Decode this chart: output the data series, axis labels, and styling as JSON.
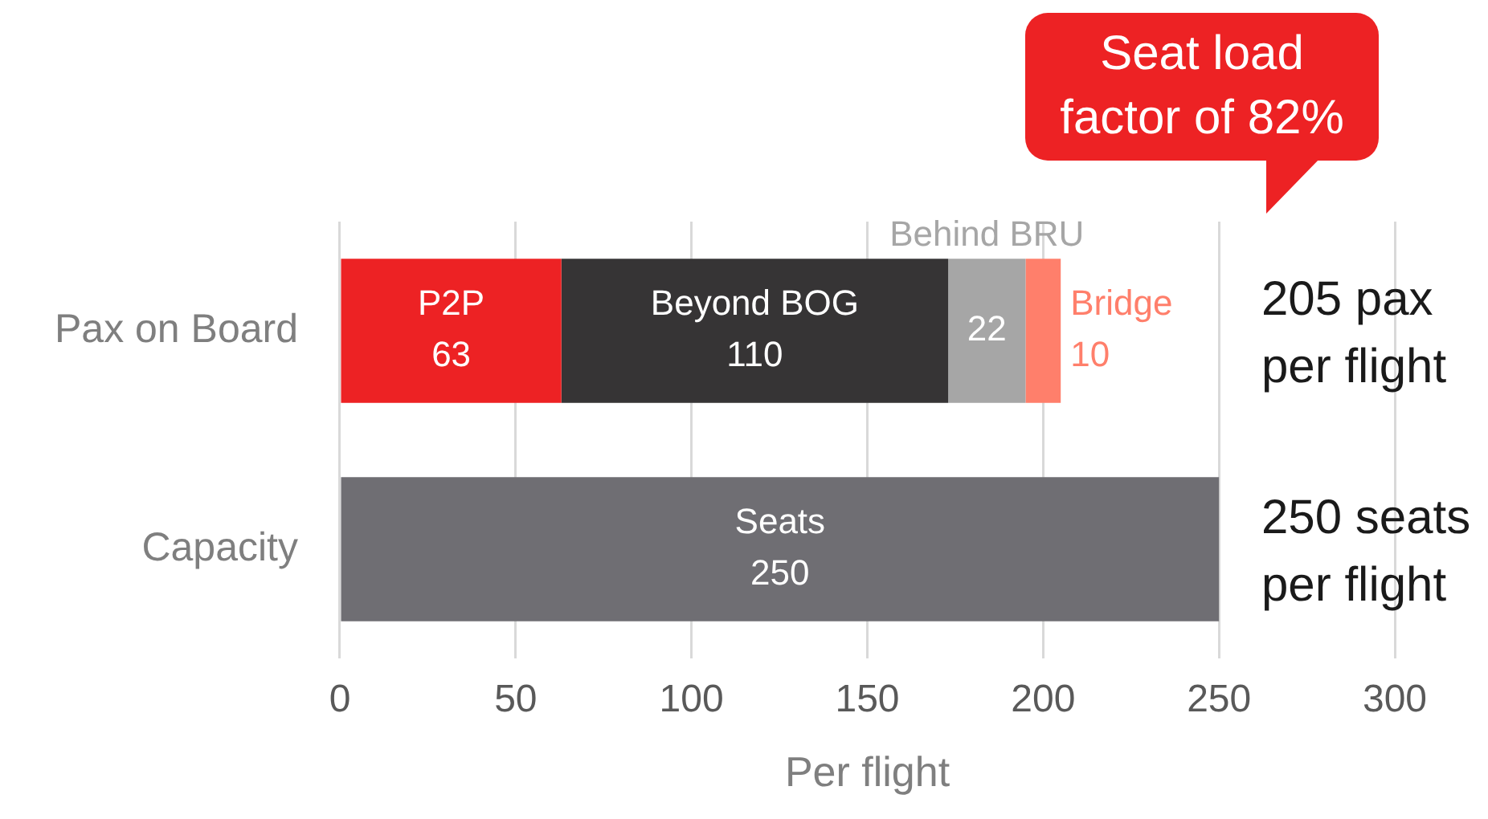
{
  "chart_data": {
    "type": "bar",
    "orientation": "horizontal",
    "stacked": true,
    "categories": [
      "Pax on Board",
      "Capacity"
    ],
    "series": [
      {
        "name": "P2P",
        "color": "#ed2224",
        "values": [
          63,
          null
        ]
      },
      {
        "name": "Beyond BOG",
        "color": "#363435",
        "values": [
          110,
          null
        ]
      },
      {
        "name": "Behind BRU",
        "color": "#a6a6a6",
        "values": [
          22,
          null
        ]
      },
      {
        "name": "Bridge",
        "color": "#ff7f6b",
        "values": [
          10,
          null
        ]
      },
      {
        "name": "Seats",
        "color": "#6f6e73",
        "values": [
          null,
          250
        ]
      }
    ],
    "xlabel": "Per flight",
    "xlim": [
      0,
      300
    ],
    "xticks": [
      0,
      50,
      100,
      150,
      200,
      250,
      300
    ],
    "grid": "x",
    "legend": false,
    "data_labels": true,
    "annotations": [
      "205 pax per flight",
      "250 seats per flight",
      "Seat load factor of 82%"
    ]
  }
}
